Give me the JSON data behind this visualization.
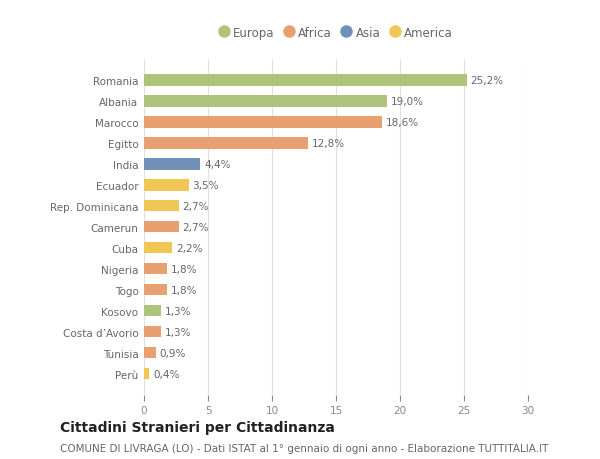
{
  "categories": [
    "Perù",
    "Tunisia",
    "Costa d’Avorio",
    "Kosovo",
    "Togo",
    "Nigeria",
    "Cuba",
    "Camerun",
    "Rep. Dominicana",
    "Ecuador",
    "India",
    "Egitto",
    "Marocco",
    "Albania",
    "Romania"
  ],
  "values": [
    0.4,
    0.9,
    1.3,
    1.3,
    1.8,
    1.8,
    2.2,
    2.7,
    2.7,
    3.5,
    4.4,
    12.8,
    18.6,
    19.0,
    25.2
  ],
  "labels": [
    "0,4%",
    "0,9%",
    "1,3%",
    "1,3%",
    "1,8%",
    "1,8%",
    "2,2%",
    "2,7%",
    "2,7%",
    "3,5%",
    "4,4%",
    "12,8%",
    "18,6%",
    "19,0%",
    "25,2%"
  ],
  "colors": [
    "#f0c755",
    "#e8a070",
    "#e8a070",
    "#adc47a",
    "#e8a070",
    "#e8a070",
    "#f0c755",
    "#e8a070",
    "#f0c755",
    "#f0c755",
    "#7090b8",
    "#e8a070",
    "#e8a070",
    "#adc47a",
    "#adc47a"
  ],
  "legend_labels": [
    "Europa",
    "Africa",
    "Asia",
    "America"
  ],
  "legend_colors": [
    "#adc47a",
    "#e8a070",
    "#7090b8",
    "#f0c755"
  ],
  "title": "Cittadini Stranieri per Cittadinanza",
  "subtitle": "COMUNE DI LIVRAGA (LO) - Dati ISTAT al 1° gennaio di ogni anno - Elaborazione TUTTITALIA.IT",
  "xlim": [
    0,
    30
  ],
  "xticks": [
    0,
    5,
    10,
    15,
    20,
    25,
    30
  ],
  "background_color": "#ffffff",
  "bar_height": 0.55,
  "title_fontsize": 10,
  "subtitle_fontsize": 7.5,
  "label_fontsize": 7.5,
  "tick_fontsize": 7.5,
  "legend_fontsize": 8.5
}
